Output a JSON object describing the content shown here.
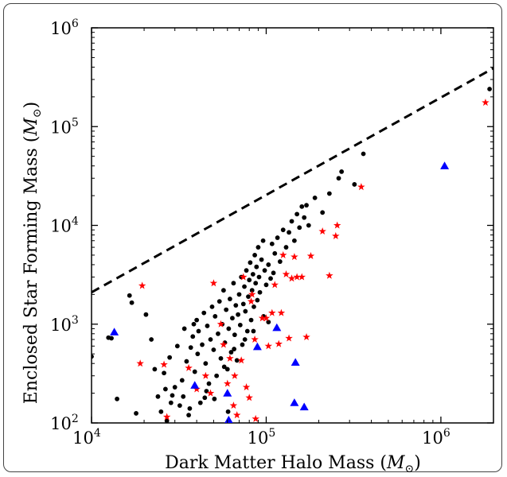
{
  "chart_data": {
    "type": "scatter",
    "xlabel": "Dark Matter Halo Mass",
    "ylabel": "Enclosed Star Forming Mass",
    "unit_symbol": "M",
    "x_scale": "log",
    "y_scale": "log",
    "xlim": [
      10000,
      2000000
    ],
    "ylim": [
      100,
      1000000
    ],
    "x_tick_labels": [
      "10",
      "10",
      "10"
    ],
    "x_tick_exponents": [
      "4",
      "5",
      "6"
    ],
    "x_tick_values": [
      10000,
      100000,
      1000000
    ],
    "y_tick_labels": [
      "10",
      "10",
      "10",
      "10",
      "10"
    ],
    "y_tick_exponents": [
      "2",
      "3",
      "4",
      "5",
      "6"
    ],
    "y_tick_values": [
      100,
      1000,
      10000,
      100000,
      1000000
    ],
    "reference_line": {
      "style": "dashed",
      "color": "#000000",
      "x": [
        10000,
        2000000
      ],
      "y": [
        2100,
        390000
      ]
    },
    "series": [
      {
        "marker": "circle",
        "color": "#000000",
        "points": [
          [
            10000,
            470
          ],
          [
            13000,
            720
          ],
          [
            14000,
            175
          ],
          [
            16500,
            1950
          ],
          [
            18000,
            125
          ],
          [
            20500,
            1250
          ],
          [
            22000,
            700
          ],
          [
            23000,
            350
          ],
          [
            24000,
            185
          ],
          [
            25000,
            130
          ],
          [
            26000,
            320
          ],
          [
            26500,
            220
          ],
          [
            27000,
            105
          ],
          [
            28000,
            460
          ],
          [
            29000,
            190
          ],
          [
            30000,
            230
          ],
          [
            31000,
            600
          ],
          [
            32000,
            150
          ],
          [
            33000,
            270
          ],
          [
            34000,
            900
          ],
          [
            35000,
            420
          ],
          [
            36000,
            120
          ],
          [
            37000,
            580
          ],
          [
            38000,
            750
          ],
          [
            39000,
            330
          ],
          [
            40000,
            1100
          ],
          [
            40500,
            500
          ],
          [
            41000,
            850
          ],
          [
            42000,
            160
          ],
          [
            43000,
            620
          ],
          [
            44000,
            1300
          ],
          [
            45000,
            400
          ],
          [
            46000,
            960
          ],
          [
            47000,
            250
          ],
          [
            48000,
            700
          ],
          [
            49000,
            1500
          ],
          [
            50000,
            550
          ],
          [
            51000,
            1200
          ],
          [
            52000,
            300
          ],
          [
            53000,
            800
          ],
          [
            54000,
            1700
          ],
          [
            55000,
            450
          ],
          [
            56000,
            1000
          ],
          [
            57000,
            2200
          ],
          [
            58000,
            650
          ],
          [
            59000,
            1400
          ],
          [
            60000,
            350
          ],
          [
            61000,
            900
          ],
          [
            62000,
            1800
          ],
          [
            63000,
            520
          ],
          [
            64000,
            1150
          ],
          [
            65000,
            2600
          ],
          [
            66000,
            780
          ],
          [
            67000,
            1550
          ],
          [
            68000,
            430
          ],
          [
            69000,
            1250
          ],
          [
            70000,
            2000
          ],
          [
            71000,
            980
          ],
          [
            72000,
            3000
          ],
          [
            73000,
            620
          ],
          [
            74000,
            1600
          ],
          [
            75000,
            2400
          ],
          [
            76000,
            1350
          ],
          [
            77000,
            3500
          ],
          [
            78000,
            850
          ],
          [
            79000,
            1900
          ],
          [
            80000,
            2800
          ],
          [
            81000,
            4200
          ],
          [
            82000,
            1100
          ],
          [
            83000,
            2200
          ],
          [
            84000,
            3200
          ],
          [
            85000,
            1500
          ],
          [
            86000,
            5000
          ],
          [
            87000,
            2600
          ],
          [
            88000,
            3800
          ],
          [
            89000,
            1750
          ],
          [
            90000,
            6000
          ],
          [
            91000,
            3000
          ],
          [
            92000,
            2100
          ],
          [
            94000,
            4500
          ],
          [
            96000,
            7000
          ],
          [
            98000,
            3500
          ],
          [
            100000,
            2500
          ],
          [
            103000,
            4000
          ],
          [
            106000,
            2900
          ],
          [
            108000,
            6500
          ],
          [
            110000,
            3300
          ],
          [
            112000,
            5200
          ],
          [
            116000,
            7500
          ],
          [
            120000,
            4300
          ],
          [
            125000,
            9000
          ],
          [
            130000,
            6000
          ],
          [
            135000,
            8500
          ],
          [
            140000,
            11000
          ],
          [
            145000,
            7000
          ],
          [
            150000,
            13000
          ],
          [
            155000,
            9500
          ],
          [
            160000,
            15500
          ],
          [
            165000,
            12000
          ],
          [
            170000,
            16000
          ],
          [
            175000,
            10000
          ],
          [
            190000,
            19000
          ],
          [
            210000,
            13500
          ],
          [
            230000,
            21000
          ],
          [
            260000,
            30000
          ],
          [
            270000,
            35000
          ],
          [
            320000,
            26000
          ],
          [
            360000,
            53000
          ],
          [
            1900000,
            240000
          ],
          [
            12500,
            730
          ],
          [
            17000,
            1650
          ],
          [
            28500,
            160
          ],
          [
            33500,
            185
          ],
          [
            36500,
            140
          ],
          [
            44500,
            180
          ],
          [
            50500,
            175
          ],
          [
            60500,
            130
          ],
          [
            45500,
            210
          ],
          [
            38500,
            1000
          ],
          [
            57500,
            370
          ],
          [
            65500,
            560
          ],
          [
            75500,
            700
          ],
          [
            84500,
            850
          ],
          [
            96500,
            1200
          ],
          [
            103000,
            1050
          ]
        ]
      },
      {
        "marker": "star",
        "color": "#ff0000",
        "points": [
          [
            19500,
            2450
          ],
          [
            19000,
            400
          ],
          [
            26000,
            390
          ],
          [
            27000,
            115
          ],
          [
            36000,
            360
          ],
          [
            40000,
            220
          ],
          [
            45000,
            300
          ],
          [
            48000,
            200
          ],
          [
            50000,
            2600
          ],
          [
            55000,
            1000
          ],
          [
            57000,
            620
          ],
          [
            60000,
            250
          ],
          [
            62000,
            450
          ],
          [
            65000,
            150
          ],
          [
            66000,
            300
          ],
          [
            68000,
            120
          ],
          [
            72000,
            430
          ],
          [
            74000,
            3000
          ],
          [
            77000,
            230
          ],
          [
            80000,
            180
          ],
          [
            82000,
            1700
          ],
          [
            83000,
            2000
          ],
          [
            86000,
            700
          ],
          [
            87000,
            110
          ],
          [
            95000,
            1150
          ],
          [
            100000,
            1150
          ],
          [
            103000,
            600
          ],
          [
            108000,
            1300
          ],
          [
            112000,
            2500
          ],
          [
            118000,
            630
          ],
          [
            122000,
            1300
          ],
          [
            125000,
            5000
          ],
          [
            130000,
            3200
          ],
          [
            135000,
            720
          ],
          [
            140000,
            2900
          ],
          [
            145000,
            4800
          ],
          [
            150000,
            3000
          ],
          [
            160000,
            3000
          ],
          [
            170000,
            740
          ],
          [
            180000,
            4900
          ],
          [
            210000,
            8700
          ],
          [
            230000,
            3100
          ],
          [
            250000,
            7800
          ],
          [
            255000,
            10000
          ],
          [
            350000,
            24500
          ],
          [
            1800000,
            175000
          ]
        ]
      },
      {
        "marker": "triangle",
        "color": "#0000ff",
        "points": [
          [
            13500,
            830
          ],
          [
            39000,
            240
          ],
          [
            60000,
            200
          ],
          [
            61000,
            107
          ],
          [
            89000,
            590
          ],
          [
            115000,
            920
          ],
          [
            147000,
            410
          ],
          [
            145000,
            160
          ],
          [
            165000,
            145
          ],
          [
            1050000,
            40000
          ]
        ]
      }
    ]
  }
}
